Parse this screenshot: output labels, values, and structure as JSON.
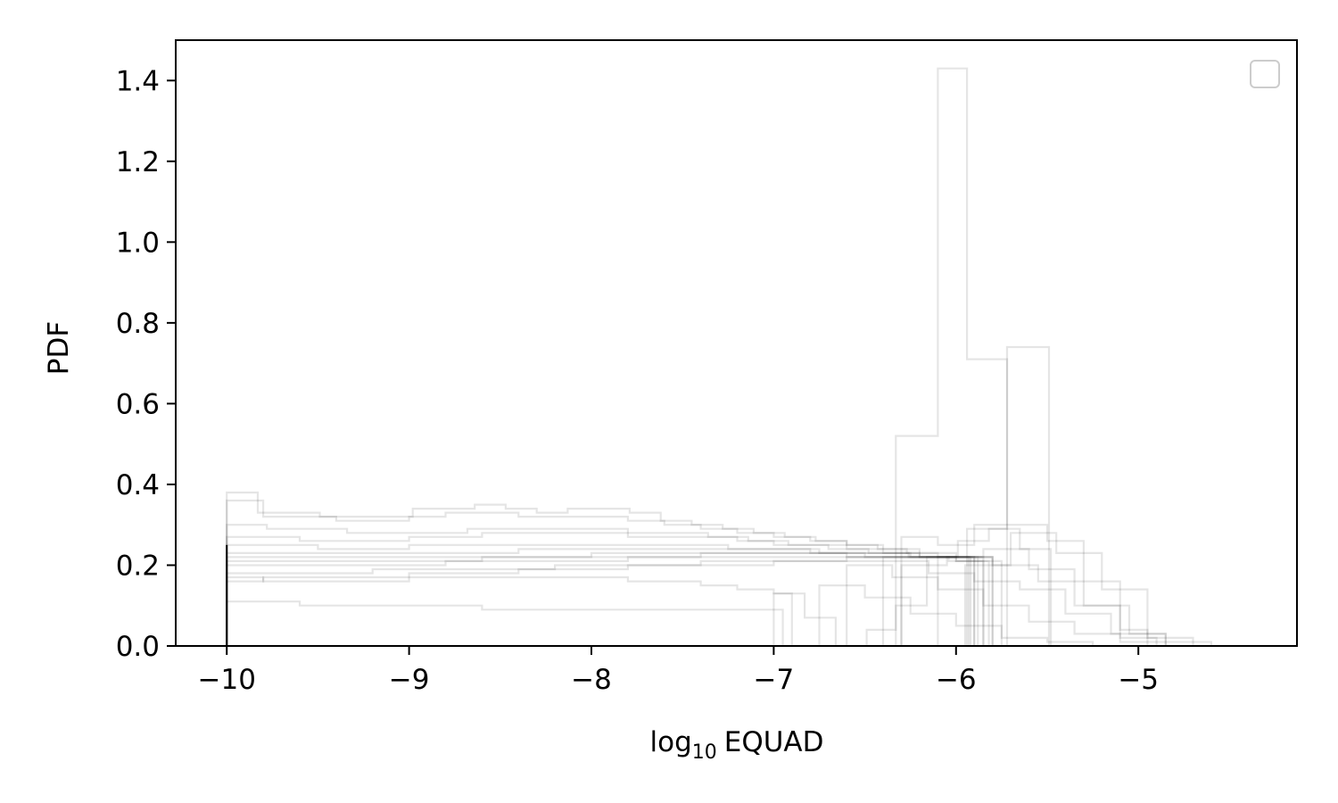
{
  "chart_data": {
    "type": "histogram-steps",
    "xlabel_base": "log",
    "xlabel_subscript": "10",
    "xlabel_rest": "EQUAD",
    "ylabel": "PDF",
    "xlim": [
      -10.28,
      -4.13
    ],
    "ylim": [
      0,
      1.5
    ],
    "xticks": [
      -10,
      -9,
      -8,
      -7,
      -6,
      -5
    ],
    "xtick_labels": [
      "−10",
      "−9",
      "−8",
      "−7",
      "−6",
      "−5"
    ],
    "yticks": [
      0.0,
      0.2,
      0.4,
      0.6,
      0.8,
      1.0,
      1.2,
      1.4
    ],
    "ytick_labels": [
      "0.0",
      "0.2",
      "0.4",
      "0.6",
      "0.8",
      "1.0",
      "1.2",
      "1.4"
    ],
    "grid": false,
    "legend": {
      "position": "top-right",
      "entries": []
    },
    "line_color": "#000000",
    "line_opacity": 0.1,
    "series": [
      {
        "bin_edges": [
          -10.0,
          -9.83,
          -9.66,
          -9.49,
          -9.32,
          -9.15,
          -8.98,
          -8.81,
          -8.64,
          -8.47,
          -8.3,
          -8.13,
          -7.96,
          -7.79,
          -7.62,
          -7.45,
          -7.28,
          -7.11,
          -6.94,
          -6.77,
          -6.6,
          -6.43,
          -6.27,
          -6.1,
          -5.93
        ],
        "values": [
          0.38,
          0.33,
          0.33,
          0.32,
          0.32,
          0.32,
          0.34,
          0.34,
          0.35,
          0.34,
          0.33,
          0.34,
          0.34,
          0.33,
          0.31,
          0.3,
          0.29,
          0.28,
          0.27,
          0.26,
          0.25,
          0.24,
          0.23,
          0.22
        ]
      },
      {
        "bin_edges": [
          -10.0,
          -9.8,
          -9.6,
          -9.4,
          -9.2,
          -9.0,
          -8.8,
          -8.6,
          -8.4,
          -8.2,
          -8.0,
          -7.8,
          -7.6,
          -7.4,
          -7.2,
          -7.0,
          -6.8,
          -6.6,
          -6.4,
          -6.2,
          -6.0,
          -5.8
        ],
        "values": [
          0.36,
          0.32,
          0.32,
          0.31,
          0.31,
          0.32,
          0.33,
          0.33,
          0.32,
          0.32,
          0.32,
          0.31,
          0.3,
          0.29,
          0.28,
          0.27,
          0.26,
          0.25,
          0.24,
          0.23,
          0.22
        ]
      },
      {
        "bin_edges": [
          -10.0,
          -9.78,
          -9.56,
          -9.34,
          -9.12,
          -8.9,
          -8.68,
          -8.46,
          -8.24,
          -8.02,
          -7.8,
          -7.58,
          -7.36,
          -7.14,
          -6.92,
          -6.7,
          -6.48,
          -6.26,
          -6.04,
          -5.82
        ],
        "values": [
          0.3,
          0.29,
          0.29,
          0.28,
          0.28,
          0.28,
          0.29,
          0.29,
          0.29,
          0.29,
          0.28,
          0.28,
          0.27,
          0.26,
          0.25,
          0.24,
          0.23,
          0.22,
          0.21
        ]
      },
      {
        "bin_edges": [
          -10.0,
          -9.8,
          -9.6,
          -9.4,
          -9.2,
          -9.0,
          -8.8,
          -8.6,
          -8.4,
          -8.2,
          -8.0,
          -7.8,
          -7.6,
          -7.4,
          -7.2,
          -7.0,
          -6.8,
          -6.6,
          -6.4,
          -6.2,
          -6.0,
          -5.85
        ],
        "values": [
          0.27,
          0.27,
          0.26,
          0.26,
          0.26,
          0.27,
          0.27,
          0.28,
          0.28,
          0.28,
          0.28,
          0.27,
          0.27,
          0.27,
          0.26,
          0.25,
          0.25,
          0.24,
          0.23,
          0.22,
          0.21
        ]
      },
      {
        "bin_edges": [
          -10.0,
          -9.75,
          -9.5,
          -9.25,
          -9.0,
          -8.75,
          -8.5,
          -8.25,
          -8.0,
          -7.75,
          -7.5,
          -7.25,
          -7.0,
          -6.75,
          -6.5,
          -6.25,
          -6.0,
          -5.75
        ],
        "values": [
          0.25,
          0.25,
          0.24,
          0.24,
          0.25,
          0.25,
          0.25,
          0.25,
          0.25,
          0.25,
          0.25,
          0.24,
          0.24,
          0.23,
          0.23,
          0.22,
          0.21
        ]
      },
      {
        "bin_edges": [
          -10.0,
          -9.8,
          -9.6,
          -9.4,
          -9.2,
          -9.0,
          -8.8,
          -8.6,
          -8.4,
          -8.2,
          -8.0,
          -7.8,
          -7.6,
          -7.4,
          -7.2,
          -7.0,
          -6.8,
          -6.6,
          -6.4,
          -6.2,
          -6.0,
          -5.88
        ],
        "values": [
          0.23,
          0.23,
          0.23,
          0.23,
          0.23,
          0.23,
          0.23,
          0.23,
          0.24,
          0.24,
          0.24,
          0.24,
          0.24,
          0.24,
          0.24,
          0.24,
          0.23,
          0.23,
          0.23,
          0.22,
          0.22
        ]
      },
      {
        "bin_edges": [
          -10.0,
          -9.75,
          -9.5,
          -9.25,
          -9.0,
          -8.75,
          -8.5,
          -8.25,
          -8.0,
          -7.75,
          -7.5,
          -7.25,
          -7.0,
          -6.75,
          -6.5,
          -6.25,
          -6.0,
          -5.8
        ],
        "values": [
          0.22,
          0.22,
          0.22,
          0.22,
          0.22,
          0.22,
          0.22,
          0.22,
          0.23,
          0.23,
          0.23,
          0.23,
          0.23,
          0.23,
          0.22,
          0.22,
          0.22
        ]
      },
      {
        "bin_edges": [
          -10.0,
          -9.8,
          -9.6,
          -9.4,
          -9.2,
          -9.0,
          -8.8,
          -8.6,
          -8.4,
          -8.2,
          -8.0,
          -7.8,
          -7.6,
          -7.4,
          -7.2,
          -7.0,
          -6.8,
          -6.6,
          -6.4,
          -6.2,
          -6.0,
          -5.9
        ],
        "values": [
          0.21,
          0.21,
          0.21,
          0.21,
          0.21,
          0.21,
          0.21,
          0.22,
          0.22,
          0.22,
          0.22,
          0.22,
          0.22,
          0.23,
          0.23,
          0.23,
          0.23,
          0.22,
          0.22,
          0.22,
          0.22
        ]
      },
      {
        "bin_edges": [
          -10.0,
          -9.8,
          -9.6,
          -9.4,
          -9.2,
          -9.0,
          -8.8,
          -8.6,
          -8.4,
          -8.2,
          -8.0,
          -7.8,
          -7.6,
          -7.4,
          -7.2,
          -7.0,
          -6.8,
          -6.6,
          -6.4,
          -6.2,
          -6.0,
          -5.92
        ],
        "values": [
          0.2,
          0.2,
          0.2,
          0.2,
          0.2,
          0.2,
          0.21,
          0.21,
          0.21,
          0.21,
          0.21,
          0.22,
          0.22,
          0.22,
          0.22,
          0.22,
          0.22,
          0.22,
          0.22,
          0.22,
          0.22
        ]
      },
      {
        "bin_edges": [
          -10.0,
          -9.8,
          -9.6,
          -9.4,
          -9.2,
          -9.0,
          -8.8,
          -8.6,
          -8.4,
          -8.2,
          -8.0,
          -7.8,
          -7.6,
          -7.4,
          -7.2,
          -7.0,
          -6.8,
          -6.6,
          -6.4,
          -6.2,
          -6.0,
          -5.9
        ],
        "values": [
          0.18,
          0.18,
          0.18,
          0.18,
          0.19,
          0.19,
          0.19,
          0.19,
          0.19,
          0.2,
          0.2,
          0.2,
          0.2,
          0.21,
          0.21,
          0.21,
          0.21,
          0.22,
          0.22,
          0.22,
          0.22
        ]
      },
      {
        "bin_edges": [
          -10.0,
          -9.8,
          -9.6,
          -9.4,
          -9.2,
          -9.0,
          -8.8,
          -8.6,
          -8.4,
          -8.2,
          -8.0,
          -7.8,
          -7.6,
          -7.4,
          -7.2,
          -7.0,
          -6.8,
          -6.6,
          -6.4,
          -6.2,
          -6.0,
          -5.85
        ],
        "values": [
          0.16,
          0.17,
          0.17,
          0.17,
          0.17,
          0.18,
          0.18,
          0.18,
          0.19,
          0.19,
          0.19,
          0.2,
          0.2,
          0.2,
          0.2,
          0.21,
          0.21,
          0.21,
          0.22,
          0.22,
          0.22
        ]
      },
      {
        "bin_edges": [
          -10.0,
          -9.8,
          -9.6,
          -9.4,
          -9.2,
          -9.0,
          -8.8,
          -8.6,
          -8.4,
          -8.2,
          -8.0,
          -7.8,
          -7.6,
          -7.4,
          -7.2,
          -7.0,
          -6.9
        ],
        "values": [
          0.17,
          0.16,
          0.16,
          0.16,
          0.16,
          0.17,
          0.17,
          0.17,
          0.17,
          0.17,
          0.17,
          0.16,
          0.16,
          0.15,
          0.14,
          0.13
        ]
      },
      {
        "bin_edges": [
          -10.0,
          -9.8,
          -9.6,
          -9.4,
          -9.2,
          -9.0,
          -8.8,
          -8.6,
          -8.4,
          -8.2,
          -8.0,
          -7.8,
          -7.6,
          -7.4,
          -7.2,
          -7.0,
          -6.95
        ],
        "values": [
          0.11,
          0.11,
          0.1,
          0.1,
          0.1,
          0.1,
          0.1,
          0.09,
          0.09,
          0.09,
          0.09,
          0.09,
          0.09,
          0.09,
          0.09,
          0.09
        ]
      },
      {
        "bin_edges": [
          -7.0,
          -6.83,
          -6.66,
          -6.49,
          -6.33,
          -6.16,
          -5.99,
          -5.82,
          -5.65,
          -5.48
        ],
        "values": [
          0.13,
          0.07,
          0.0,
          0.04,
          0.1,
          0.22,
          0.26,
          0.29,
          0.24
        ]
      },
      {
        "bin_edges": [
          -6.33,
          -6.1,
          -5.94,
          -5.72,
          -5.49
        ],
        "values": [
          0.52,
          1.43,
          0.71,
          0.0
        ]
      },
      {
        "bin_edges": [
          -5.94,
          -5.72,
          -5.49,
          -5.27
        ],
        "values": [
          0.29,
          0.74,
          0.0
        ]
      },
      {
        "bin_edges": [
          -6.3,
          -6.1,
          -5.9,
          -5.7,
          -5.5,
          -5.3,
          -5.1,
          -4.95
        ],
        "values": [
          0.27,
          0.25,
          0.3,
          0.3,
          0.26,
          0.16,
          0.04
        ]
      },
      {
        "bin_edges": [
          -6.3,
          -6.05,
          -5.8,
          -5.55,
          -5.3,
          -5.05,
          -4.85
        ],
        "values": [
          0.2,
          0.22,
          0.2,
          0.16,
          0.1,
          0.03
        ]
      },
      {
        "bin_edges": [
          -5.95,
          -5.7,
          -5.45,
          -5.2,
          -4.95,
          -4.7
        ],
        "values": [
          0.2,
          0.28,
          0.23,
          0.14,
          0.02
        ]
      },
      {
        "bin_edges": [
          -6.1,
          -5.85,
          -5.6,
          -5.35,
          -5.1,
          -4.9
        ],
        "values": [
          0.22,
          0.24,
          0.19,
          0.1,
          0.02
        ]
      },
      {
        "bin_edges": [
          -6.4,
          -6.15,
          -5.9,
          -5.65,
          -5.4,
          -5.15,
          -4.85,
          -4.6
        ],
        "values": [
          0.21,
          0.18,
          0.16,
          0.14,
          0.08,
          0.03,
          0.01
        ]
      },
      {
        "bin_edges": [
          -6.6,
          -6.35,
          -6.1,
          -5.85,
          -5.6,
          -5.35,
          -5.1,
          -4.85
        ],
        "values": [
          0.2,
          0.17,
          0.14,
          0.1,
          0.06,
          0.03,
          0.01
        ]
      },
      {
        "bin_edges": [
          -6.75,
          -6.5,
          -6.25,
          -6.0,
          -5.75,
          -5.5,
          -5.25,
          -5.0
        ],
        "values": [
          0.15,
          0.12,
          0.08,
          0.05,
          0.02,
          0.01,
          0.0
        ]
      }
    ]
  }
}
